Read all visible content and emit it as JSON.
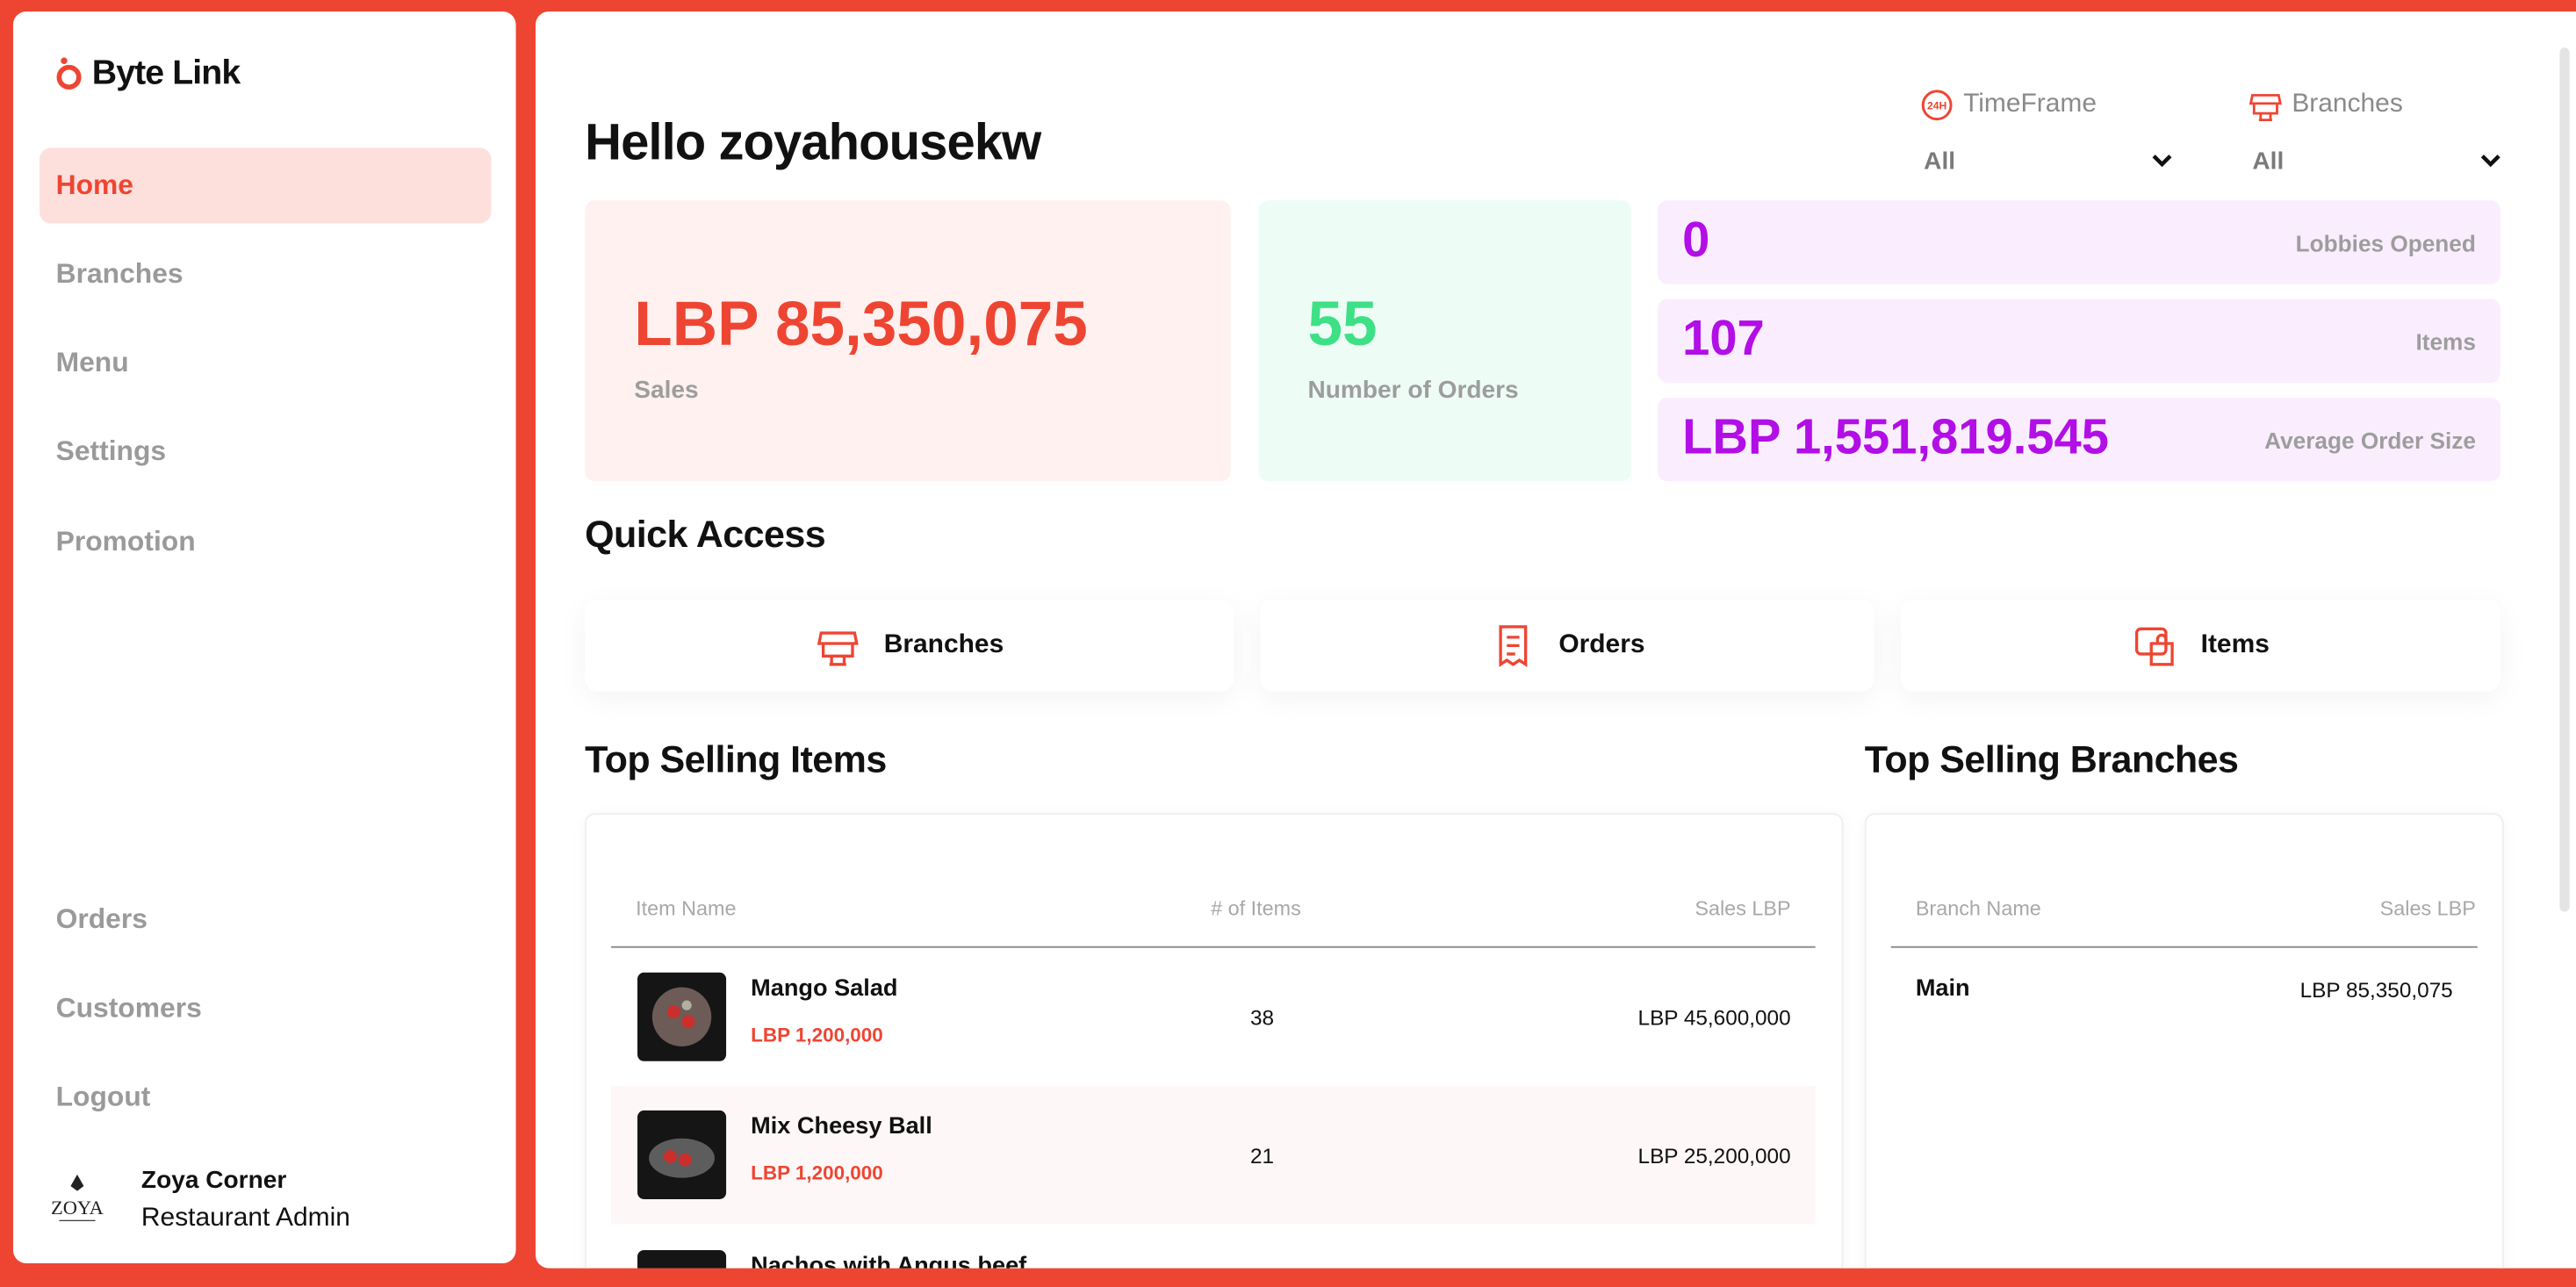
{
  "sidebar": {
    "logo": "Byte Link",
    "nav": [
      "Home",
      "Branches",
      "Menu",
      "Settings",
      "Promotion"
    ],
    "bottom_nav": [
      "Orders",
      "Customers",
      "Logout"
    ],
    "profile": {
      "name": "Zoya Corner",
      "role": "Restaurant Admin"
    }
  },
  "header": {
    "greeting": "Hello zoyahousekw",
    "filters": [
      {
        "label": "TimeFrame",
        "value": "All"
      },
      {
        "label": "Branches",
        "value": "All"
      }
    ]
  },
  "stats": {
    "sales": {
      "value": "LBP 85,350,075",
      "label": "Sales"
    },
    "orders": {
      "value": "55",
      "label": "Number of Orders"
    },
    "small": [
      {
        "value": "0",
        "label": "Lobbies Opened"
      },
      {
        "value": "107",
        "label": "Items"
      },
      {
        "value": "LBP 1,551,819.545",
        "label": "Average Order Size"
      }
    ]
  },
  "quick_access": {
    "title": "Quick Access",
    "items": [
      "Branches",
      "Orders",
      "Items"
    ]
  },
  "top_items": {
    "title": "Top Selling Items",
    "columns": [
      "Item Name",
      "# of Items",
      "Sales LBP"
    ],
    "rows": [
      {
        "name": "Mango Salad",
        "price": "LBP 1,200,000",
        "count": "38",
        "sales": "LBP 45,600,000"
      },
      {
        "name": "Mix Cheesy Ball",
        "price": "LBP 1,200,000",
        "count": "21",
        "sales": "LBP 25,200,000"
      },
      {
        "name": "Nachos with Angus beef"
      }
    ]
  },
  "top_branches": {
    "title": "Top Selling Branches",
    "columns": [
      "Branch Name",
      "Sales LBP"
    ],
    "rows": [
      {
        "name": "Main",
        "sales": "LBP 85,350,075"
      }
    ]
  }
}
